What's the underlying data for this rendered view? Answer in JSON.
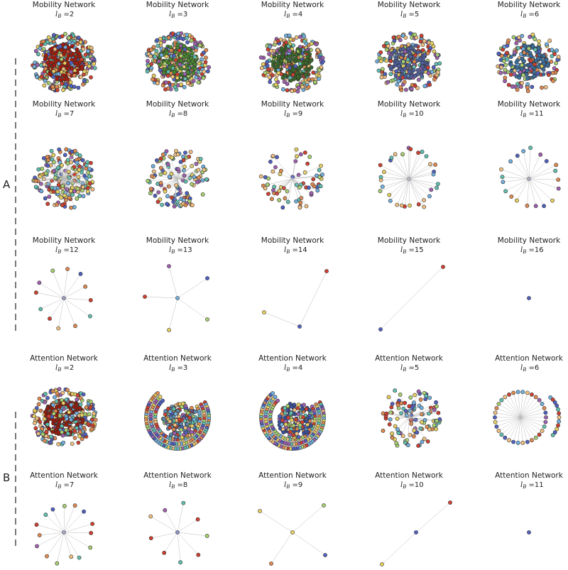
{
  "sections": [
    {
      "label": "A",
      "panels": [
        {
          "title": "Mobility Network",
          "sub": "l",
          "subscript": "B",
          "eq": "=2",
          "n": 520,
          "kind": "dense",
          "core": "#aa1a0a"
        },
        {
          "title": "Mobility Network",
          "sub": "l",
          "subscript": "B",
          "eq": "=3",
          "n": 440,
          "kind": "dense",
          "core": "#4a8a30"
        },
        {
          "title": "Mobility Network",
          "sub": "l",
          "subscript": "B",
          "eq": "=4",
          "n": 400,
          "kind": "dense",
          "core": "#3a6a28"
        },
        {
          "title": "Mobility Network",
          "sub": "l",
          "subscript": "B",
          "eq": "=5",
          "n": 330,
          "kind": "dense",
          "core": "#5060a0"
        },
        {
          "title": "Mobility Network",
          "sub": "l",
          "subscript": "B",
          "eq": "=6",
          "n": 260,
          "kind": "dense",
          "core": "#3a70a0"
        },
        {
          "title": "Mobility Network",
          "sub": "l",
          "subscript": "B",
          "eq": "=7",
          "n": 200,
          "kind": "cloud"
        },
        {
          "title": "Mobility Network",
          "sub": "l",
          "subscript": "B",
          "eq": "=8",
          "n": 130,
          "kind": "cloud"
        },
        {
          "title": "Mobility Network",
          "sub": "l",
          "subscript": "B",
          "eq": "=9",
          "n": 70,
          "kind": "sparse"
        },
        {
          "title": "Mobility Network",
          "sub": "l",
          "subscript": "B",
          "eq": "=10",
          "n": 32,
          "kind": "star"
        },
        {
          "title": "Mobility Network",
          "sub": "l",
          "subscript": "B",
          "eq": "=11",
          "n": 20,
          "kind": "star"
        },
        {
          "title": "Mobility Network",
          "sub": "l",
          "subscript": "B",
          "eq": "=12",
          "n": 12,
          "kind": "star"
        },
        {
          "title": "Mobility Network",
          "sub": "l",
          "subscript": "B",
          "eq": "=13",
          "n": 5,
          "kind": "star5"
        },
        {
          "title": "Mobility Network",
          "sub": "l",
          "subscript": "B",
          "eq": "=14",
          "n": 3,
          "kind": "line3"
        },
        {
          "title": "Mobility Network",
          "sub": "l",
          "subscript": "B",
          "eq": "=15",
          "n": 2,
          "kind": "line2"
        },
        {
          "title": "Mobility Network",
          "sub": "l",
          "subscript": "B",
          "eq": "=16",
          "n": 1,
          "kind": "single"
        }
      ]
    },
    {
      "label": "B",
      "panels": [
        {
          "title": "Attention Network",
          "sub": "l",
          "subscript": "B",
          "eq": "=2",
          "n": 420,
          "kind": "dense",
          "core": "#9a1a0a"
        },
        {
          "title": "Attention Network",
          "sub": "l",
          "subscript": "B",
          "eq": "=3",
          "n": 360,
          "kind": "rings",
          "core": "#5a8ab0"
        },
        {
          "title": "Attention Network",
          "sub": "l",
          "subscript": "B",
          "eq": "=4",
          "n": 320,
          "kind": "rings",
          "core": "#3a50a0"
        },
        {
          "title": "Attention Network",
          "sub": "l",
          "subscript": "B",
          "eq": "=5",
          "n": 110,
          "kind": "cloud"
        },
        {
          "title": "Attention Network",
          "sub": "l",
          "subscript": "B",
          "eq": "=6",
          "n": 48,
          "kind": "twocircle"
        },
        {
          "title": "Attention Network",
          "sub": "l",
          "subscript": "B",
          "eq": "=7",
          "n": 15,
          "kind": "star"
        },
        {
          "title": "Attention Network",
          "sub": "l",
          "subscript": "B",
          "eq": "=8",
          "n": 9,
          "kind": "star"
        },
        {
          "title": "Attention Network",
          "sub": "l",
          "subscript": "B",
          "eq": "=9",
          "n": 4,
          "kind": "star4"
        },
        {
          "title": "Attention Network",
          "sub": "l",
          "subscript": "B",
          "eq": "=10",
          "n": 3,
          "kind": "line3b"
        },
        {
          "title": "Attention Network",
          "sub": "l",
          "subscript": "B",
          "eq": "=11",
          "n": 1,
          "kind": "single"
        }
      ]
    }
  ],
  "palette": [
    "#d04030",
    "#e08a50",
    "#e8d060",
    "#a8d070",
    "#60c0b0",
    "#70b0e0",
    "#5060c0",
    "#a060b0",
    "#f0c080"
  ]
}
